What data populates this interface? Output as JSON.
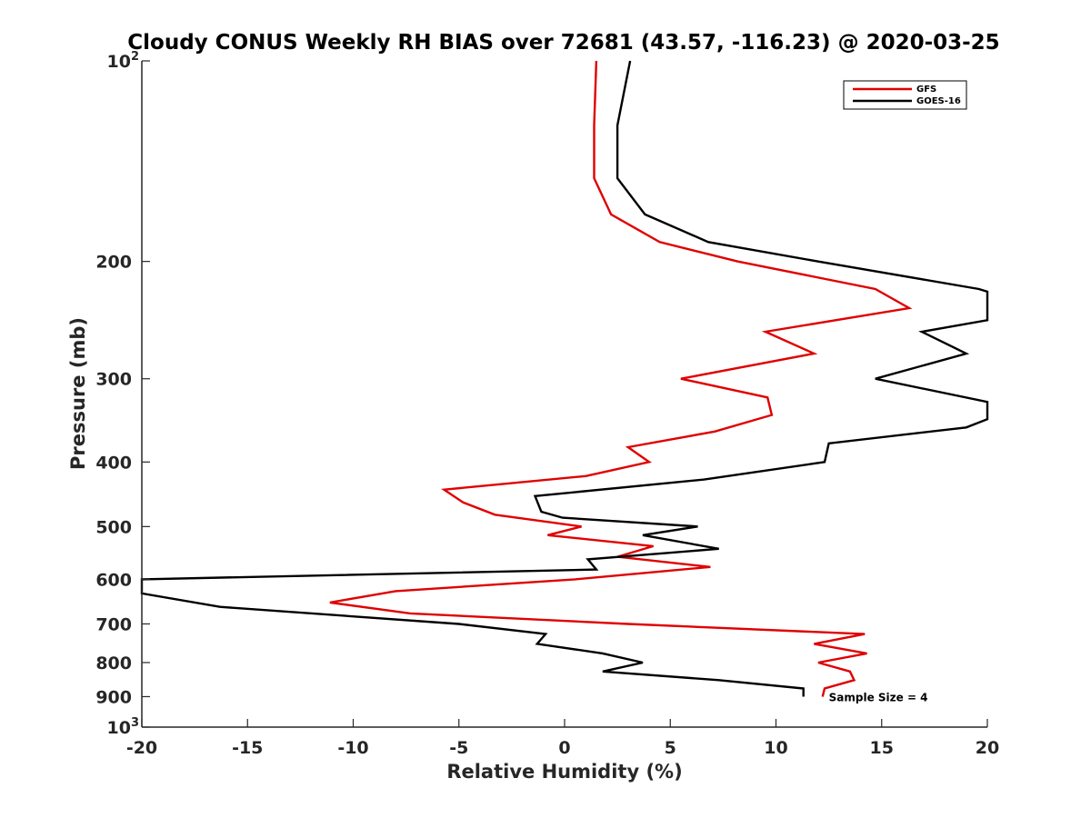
{
  "chart_data": {
    "type": "line",
    "title": "Cloudy CONUS Weekly RH BIAS over 72681 (43.57, -116.23) @ 2020-03-25",
    "xlabel": "Relative Humidity (%)",
    "ylabel": "Pressure (mb)",
    "xlim": [
      -20,
      20
    ],
    "ylim": [
      100,
      1000
    ],
    "y_scale": "log",
    "y_direction": "reversed",
    "x_ticks": [
      "-20",
      "-15",
      "-10",
      "-5",
      "0",
      "5",
      "10",
      "15",
      "20"
    ],
    "y_tick_labels": [
      {
        "value": 100,
        "base": "10",
        "exp": "2"
      },
      {
        "value": 200,
        "base": "200",
        "exp": ""
      },
      {
        "value": 300,
        "base": "300",
        "exp": ""
      },
      {
        "value": 400,
        "base": "400",
        "exp": ""
      },
      {
        "value": 500,
        "base": "500",
        "exp": ""
      },
      {
        "value": 600,
        "base": "600",
        "exp": ""
      },
      {
        "value": 700,
        "base": "700",
        "exp": ""
      },
      {
        "value": 800,
        "base": "800",
        "exp": ""
      },
      {
        "value": 900,
        "base": "900",
        "exp": ""
      },
      {
        "value": 1000,
        "base": "10",
        "exp": "3"
      }
    ],
    "legend_position": "top-right",
    "annotation": "Sample Size = 4",
    "annotation_at": {
      "x": 12.5,
      "p": 900
    },
    "series": [
      {
        "name": "GFS",
        "color": "#e00000",
        "points": [
          [
            1.5,
            100
          ],
          [
            1.4,
            125
          ],
          [
            1.4,
            150
          ],
          [
            2.2,
            170
          ],
          [
            4.5,
            187
          ],
          [
            8.2,
            200
          ],
          [
            14.7,
            220
          ],
          [
            16.3,
            235
          ],
          [
            9.5,
            255
          ],
          [
            11.8,
            275
          ],
          [
            5.5,
            300
          ],
          [
            9.6,
            320
          ],
          [
            9.8,
            340
          ],
          [
            7.1,
            360
          ],
          [
            3.0,
            380
          ],
          [
            4.0,
            400
          ],
          [
            1.0,
            420
          ],
          [
            -5.7,
            440
          ],
          [
            -4.8,
            460
          ],
          [
            -3.3,
            480
          ],
          [
            0.8,
            500
          ],
          [
            -0.8,
            515
          ],
          [
            4.2,
            535
          ],
          [
            2.5,
            555
          ],
          [
            6.9,
            575
          ],
          [
            0.5,
            600
          ],
          [
            -8.0,
            625
          ],
          [
            -11.1,
            650
          ],
          [
            -7.3,
            675
          ],
          [
            3.0,
            700
          ],
          [
            14.2,
            725
          ],
          [
            11.8,
            750
          ],
          [
            14.3,
            775
          ],
          [
            12.0,
            800
          ],
          [
            13.5,
            825
          ],
          [
            13.7,
            850
          ],
          [
            12.3,
            875
          ],
          [
            12.2,
            900
          ]
        ]
      },
      {
        "name": "GOES-16",
        "color": "#000000",
        "points": [
          [
            3.1,
            100
          ],
          [
            2.5,
            125
          ],
          [
            2.5,
            150
          ],
          [
            3.8,
            170
          ],
          [
            6.8,
            187
          ],
          [
            12.0,
            200
          ],
          [
            19.6,
            220
          ],
          [
            20.0,
            222
          ],
          [
            20.5,
            240
          ],
          [
            20.0,
            245
          ],
          [
            16.9,
            255
          ],
          [
            19.0,
            275
          ],
          [
            14.7,
            300
          ],
          [
            20.0,
            325
          ],
          [
            20.5,
            340
          ],
          [
            20.0,
            345
          ],
          [
            19.0,
            355
          ],
          [
            12.5,
            375
          ],
          [
            12.3,
            400
          ],
          [
            6.6,
            425
          ],
          [
            -1.4,
            450
          ],
          [
            -1.1,
            475
          ],
          [
            -0.1,
            485
          ],
          [
            6.3,
            500
          ],
          [
            3.7,
            515
          ],
          [
            7.3,
            540
          ],
          [
            1.1,
            560
          ],
          [
            1.5,
            580
          ],
          [
            -20.0,
            600
          ],
          [
            -20.5,
            625
          ],
          [
            -20.0,
            630
          ],
          [
            -16.3,
            660
          ],
          [
            -5.0,
            700
          ],
          [
            -0.9,
            725
          ],
          [
            -1.3,
            750
          ],
          [
            1.8,
            775
          ],
          [
            3.7,
            800
          ],
          [
            1.8,
            825
          ],
          [
            7.3,
            850
          ],
          [
            11.3,
            875
          ],
          [
            11.3,
            900
          ]
        ]
      }
    ]
  }
}
